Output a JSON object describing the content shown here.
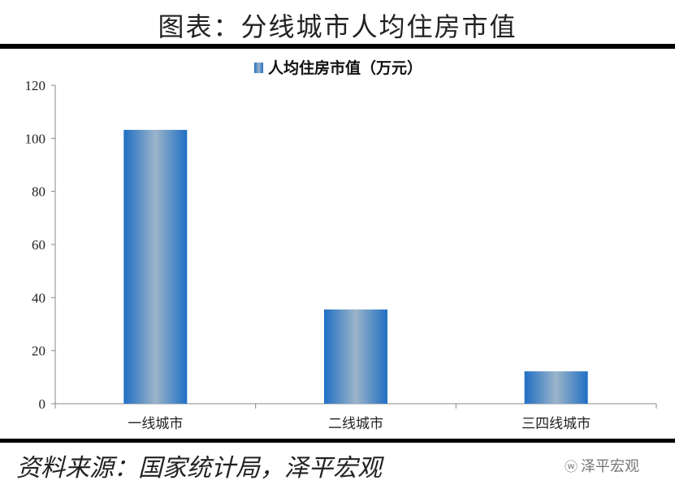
{
  "header": {
    "title": "图表：分线城市人均住房市值"
  },
  "footer": {
    "source": "资料来源：国家统计局，泽平宏观",
    "brand": "泽平宏观",
    "brand_icon": "wechat-icon"
  },
  "chart_data": {
    "type": "bar",
    "title": "",
    "categories": [
      "一线城市",
      "二线城市",
      "三四线城市"
    ],
    "series": [
      {
        "name": "人均住房市值（万元）",
        "values": [
          103.2,
          35.5,
          12.2
        ]
      }
    ],
    "ylim": [
      0,
      120
    ],
    "yticks": [
      0,
      20,
      40,
      60,
      80,
      100,
      120
    ],
    "xlabel": "",
    "ylabel": "",
    "grid": false,
    "legend": "top-center",
    "colors": {
      "bar_edge": "#1f6fc4",
      "bar_center": "#9bb4c9"
    }
  }
}
